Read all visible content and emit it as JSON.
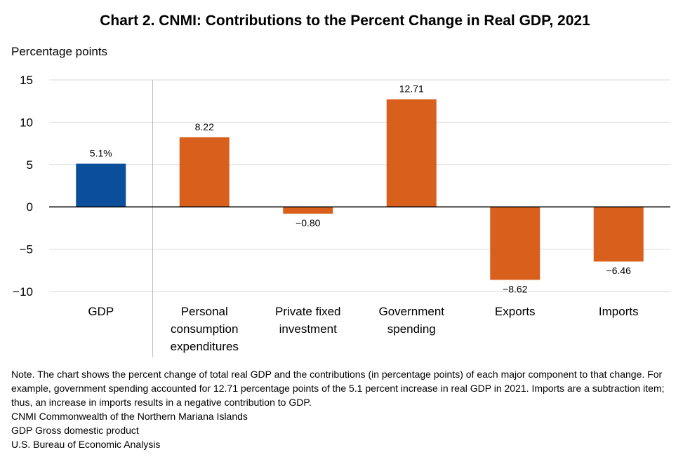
{
  "chart_data": {
    "type": "bar",
    "title": "Chart 2. CNMI: Contributions to the Percent Change in Real GDP, 2021",
    "ylabel": "Percentage points",
    "xlabel": "",
    "ylim": [
      -10,
      15
    ],
    "yticks": [
      15,
      10,
      5,
      0,
      -5,
      -10
    ],
    "ytick_labels": [
      "15",
      "10",
      "5",
      "0",
      "−5",
      "−10"
    ],
    "grid": true,
    "categories": [
      [
        "GDP"
      ],
      [
        "Personal",
        "consumption",
        "expenditures"
      ],
      [
        "Private fixed",
        "investment"
      ],
      [
        "Government",
        "spending"
      ],
      [
        "Exports"
      ],
      [
        "Imports"
      ]
    ],
    "values": [
      5.1,
      8.22,
      -0.8,
      12.71,
      -8.62,
      -6.46
    ],
    "data_labels": [
      "5.1%",
      "8.22",
      "−0.80",
      "12.71",
      "−8.62",
      "−6.46"
    ],
    "colors": [
      "#0b4f9c",
      "#d95f1d",
      "#d95f1d",
      "#d95f1d",
      "#d95f1d",
      "#d95f1d"
    ]
  },
  "notes": [
    "Note. The chart shows the percent change of total real GDP and the contributions (in percentage points) of each major component to that change. For example, government spending accounted for 12.71 percentage points of the 5.1 percent increase in real GDP in 2021. Imports are a subtraction item; thus, an increase in imports results in a negative contribution to GDP.",
    "CNMI Commonwealth of the Northern Mariana Islands",
    "GDP Gross domestic product",
    "U.S. Bureau of Economic Analysis"
  ]
}
